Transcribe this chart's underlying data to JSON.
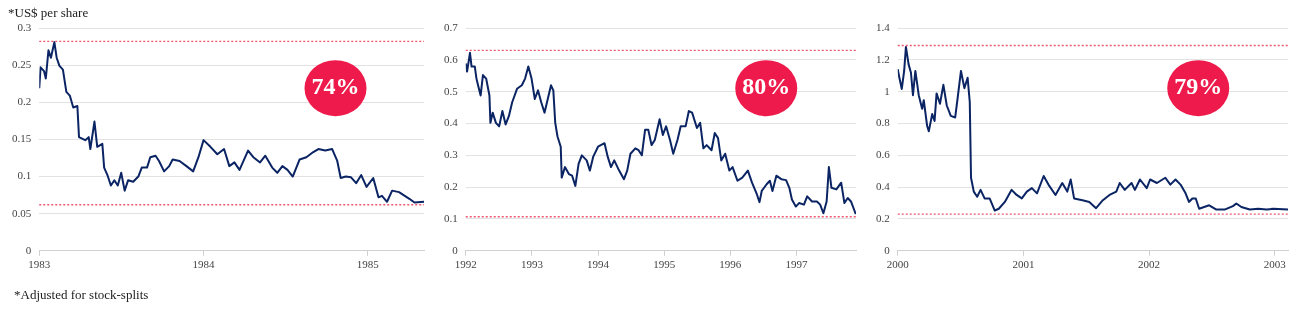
{
  "chart_data": [
    {
      "type": "line",
      "ylabel": "*US$ per share",
      "annotations": [
        "74%",
        "*Adjusted for stock-splits"
      ],
      "xlim": [
        1983,
        1985.342
      ],
      "xticks": [
        1983,
        1984,
        1985
      ],
      "ylim": [
        0,
        0.3
      ],
      "yticks": [
        0,
        0.05,
        0.1,
        0.15,
        0.2,
        0.25,
        0.3
      ],
      "grid": "y",
      "legend": false,
      "marker": "none",
      "line_style": "solid",
      "ref_lines": [
        {
          "axis": "y",
          "value": 0.282,
          "color": "#f0566e",
          "line_style": "dotted"
        },
        {
          "axis": "y",
          "value": 0.062,
          "color": "#f0566e",
          "line_style": "dotted"
        }
      ],
      "series": [
        {
          "color": "#0b2463",
          "x": [
            1983.0,
            1983.008,
            1983.029,
            1983.04,
            1983.056,
            1983.071,
            1983.092,
            1983.106,
            1983.123,
            1983.144,
            1983.165,
            1983.186,
            1983.207,
            1983.232,
            1983.242,
            1983.28,
            1983.301,
            1983.311,
            1983.336,
            1983.353,
            1983.384,
            1983.395,
            1983.415,
            1983.436,
            1983.457,
            1983.478,
            1983.499,
            1983.52,
            1983.541,
            1983.572,
            1983.603,
            1983.624,
            1983.656,
            1983.676,
            1983.708,
            1983.729,
            1983.76,
            1983.791,
            1983.812,
            1983.854,
            1983.896,
            1983.937,
            1983.969,
            1984.0,
            1984.042,
            1984.084,
            1984.125,
            1984.157,
            1984.188,
            1984.219,
            1984.271,
            1984.303,
            1984.344,
            1984.376,
            1984.418,
            1984.449,
            1984.48,
            1984.511,
            1984.543,
            1984.585,
            1984.626,
            1984.668,
            1984.699,
            1984.741,
            1984.783,
            1984.814,
            1984.835,
            1984.866,
            1984.898,
            1984.929,
            1984.96,
            1984.992,
            1985.033,
            1985.065,
            1985.086,
            1985.117,
            1985.148,
            1985.19,
            1985.253,
            1985.284,
            1985.342
          ],
          "values": [
            0.219,
            0.247,
            0.242,
            0.232,
            0.27,
            0.26,
            0.281,
            0.26,
            0.249,
            0.244,
            0.214,
            0.209,
            0.193,
            0.195,
            0.153,
            0.149,
            0.153,
            0.137,
            0.174,
            0.14,
            0.144,
            0.112,
            0.102,
            0.088,
            0.095,
            0.088,
            0.105,
            0.081,
            0.095,
            0.093,
            0.1,
            0.112,
            0.112,
            0.126,
            0.128,
            0.121,
            0.107,
            0.114,
            0.123,
            0.121,
            0.114,
            0.107,
            0.126,
            0.149,
            0.14,
            0.13,
            0.137,
            0.114,
            0.119,
            0.109,
            0.135,
            0.126,
            0.119,
            0.128,
            0.112,
            0.105,
            0.114,
            0.109,
            0.1,
            0.123,
            0.126,
            0.133,
            0.137,
            0.135,
            0.137,
            0.121,
            0.098,
            0.1,
            0.099,
            0.091,
            0.102,
            0.086,
            0.098,
            0.072,
            0.074,
            0.066,
            0.081,
            0.079,
            0.07,
            0.065,
            0.066
          ]
        }
      ]
    },
    {
      "type": "line",
      "annotations": [
        "80%"
      ],
      "xlim": [
        1992,
        1997.9
      ],
      "xticks": [
        1992,
        1993,
        1994,
        1995,
        1996,
        1997
      ],
      "ylim": [
        0,
        0.7
      ],
      "yticks": [
        0,
        0.1,
        0.2,
        0.3,
        0.4,
        0.5,
        0.6,
        0.7
      ],
      "grid": "y",
      "legend": false,
      "marker": "none",
      "line_style": "solid",
      "ref_lines": [
        {
          "axis": "y",
          "value": 0.63,
          "color": "#f0566e",
          "line_style": "dotted"
        },
        {
          "axis": "y",
          "value": 0.107,
          "color": "#f0566e",
          "line_style": "dotted"
        }
      ],
      "series": [
        {
          "color": "#0b2463",
          "x": [
            1992.0,
            1992.02,
            1992.064,
            1992.088,
            1992.137,
            1992.162,
            1992.186,
            1992.225,
            1992.26,
            1992.309,
            1992.358,
            1992.373,
            1992.407,
            1992.456,
            1992.505,
            1992.554,
            1992.603,
            1992.652,
            1992.701,
            1992.775,
            1992.848,
            1992.897,
            1992.946,
            1992.995,
            1993.044,
            1993.093,
            1993.142,
            1993.191,
            1993.24,
            1993.289,
            1993.324,
            1993.353,
            1993.387,
            1993.436,
            1993.451,
            1993.5,
            1993.559,
            1993.608,
            1993.657,
            1993.706,
            1993.755,
            1993.828,
            1993.877,
            1993.926,
            1994.0,
            1994.098,
            1994.147,
            1994.196,
            1994.245,
            1994.319,
            1994.392,
            1994.441,
            1994.49,
            1994.564,
            1994.613,
            1994.662,
            1994.711,
            1994.76,
            1994.809,
            1994.858,
            1994.931,
            1994.98,
            1995.029,
            1995.088,
            1995.137,
            1995.201,
            1995.25,
            1995.324,
            1995.373,
            1995.422,
            1995.495,
            1995.544,
            1995.593,
            1995.642,
            1995.716,
            1995.765,
            1995.814,
            1995.863,
            1995.922,
            1995.985,
            1996.034,
            1996.108,
            1996.181,
            1996.265,
            1996.328,
            1996.402,
            1996.441,
            1996.475,
            1996.549,
            1996.598,
            1996.637,
            1996.696,
            1996.77,
            1996.843,
            1996.892,
            1996.931,
            1996.99,
            1997.039,
            1997.113,
            1997.162,
            1997.235,
            1997.309,
            1997.358,
            1997.407,
            1997.456,
            1997.49,
            1997.529,
            1997.603,
            1997.676,
            1997.725,
            1997.775,
            1997.824,
            1997.897
          ],
          "values": [
            0.589,
            0.563,
            0.622,
            0.579,
            0.579,
            0.541,
            0.52,
            0.488,
            0.552,
            0.541,
            0.488,
            0.402,
            0.434,
            0.402,
            0.391,
            0.439,
            0.397,
            0.423,
            0.466,
            0.509,
            0.52,
            0.541,
            0.579,
            0.541,
            0.477,
            0.504,
            0.466,
            0.434,
            0.477,
            0.52,
            0.504,
            0.402,
            0.359,
            0.327,
            0.23,
            0.263,
            0.241,
            0.236,
            0.204,
            0.273,
            0.3,
            0.284,
            0.252,
            0.295,
            0.327,
            0.338,
            0.295,
            0.263,
            0.284,
            0.252,
            0.225,
            0.252,
            0.305,
            0.322,
            0.316,
            0.3,
            0.38,
            0.38,
            0.332,
            0.348,
            0.413,
            0.364,
            0.391,
            0.348,
            0.305,
            0.348,
            0.391,
            0.391,
            0.439,
            0.434,
            0.386,
            0.402,
            0.322,
            0.332,
            0.316,
            0.37,
            0.354,
            0.284,
            0.305,
            0.252,
            0.263,
            0.22,
            0.23,
            0.252,
            0.214,
            0.177,
            0.153,
            0.188,
            0.209,
            0.22,
            0.188,
            0.236,
            0.225,
            0.222,
            0.198,
            0.161,
            0.139,
            0.15,
            0.145,
            0.171,
            0.155,
            0.155,
            0.145,
            0.118,
            0.155,
            0.263,
            0.198,
            0.193,
            0.214,
            0.15,
            0.166,
            0.155,
            0.115
          ]
        }
      ]
    },
    {
      "type": "line",
      "annotations": [
        "79%"
      ],
      "xlim": [
        2000,
        2003.105
      ],
      "xticks": [
        2000,
        2001,
        2002,
        2003
      ],
      "ylim": [
        0,
        1.4
      ],
      "yticks": [
        0,
        0.2,
        0.4,
        0.6,
        0.8,
        1,
        1.2,
        1.4
      ],
      "grid": "y",
      "legend": false,
      "marker": "none",
      "line_style": "solid",
      "ref_lines": [
        {
          "axis": "y",
          "value": 1.29,
          "color": "#f0566e",
          "line_style": "dotted"
        },
        {
          "axis": "y",
          "value": 0.23,
          "color": "#f0566e",
          "line_style": "dotted"
        }
      ],
      "series": [
        {
          "color": "#0b2463",
          "x": [
            2000.0,
            2000.013,
            2000.032,
            2000.051,
            2000.065,
            2000.086,
            2000.105,
            2000.121,
            2000.14,
            2000.167,
            2000.194,
            2000.207,
            2000.234,
            2000.247,
            2000.274,
            2000.293,
            2000.309,
            2000.336,
            2000.363,
            2000.39,
            2000.422,
            2000.457,
            2000.476,
            2000.503,
            2000.53,
            2000.556,
            2000.573,
            2000.583,
            2000.605,
            2000.632,
            2000.659,
            2000.691,
            2000.731,
            2000.772,
            2000.804,
            2000.852,
            2000.906,
            2000.946,
            2000.987,
            2001.027,
            2001.067,
            2001.108,
            2001.161,
            2001.199,
            2001.255,
            2001.309,
            2001.349,
            2001.376,
            2001.403,
            2001.47,
            2001.524,
            2001.578,
            2001.632,
            2001.685,
            2001.739,
            2001.766,
            2001.806,
            2001.86,
            2001.887,
            2001.927,
            2001.981,
            2002.008,
            2002.062,
            2002.129,
            2002.169,
            2002.21,
            2002.25,
            2002.29,
            2002.317,
            2002.344,
            2002.371,
            2002.398,
            2002.438,
            2002.478,
            2002.532,
            2002.605,
            2002.667,
            2002.694,
            2002.734,
            2002.801,
            2002.868,
            2002.935,
            2002.989,
            2003.105
          ],
          "values": [
            1.141,
            1.087,
            1.017,
            1.13,
            1.281,
            1.173,
            1.119,
            0.978,
            1.13,
            0.978,
            0.892,
            0.946,
            0.784,
            0.751,
            0.859,
            0.816,
            0.989,
            0.924,
            1.043,
            0.913,
            0.848,
            0.838,
            0.957,
            1.13,
            1.022,
            1.087,
            0.935,
            0.459,
            0.372,
            0.34,
            0.383,
            0.329,
            0.329,
            0.253,
            0.264,
            0.307,
            0.383,
            0.351,
            0.329,
            0.372,
            0.394,
            0.361,
            0.47,
            0.416,
            0.351,
            0.426,
            0.372,
            0.448,
            0.329,
            0.318,
            0.307,
            0.268,
            0.318,
            0.351,
            0.372,
            0.426,
            0.383,
            0.426,
            0.383,
            0.448,
            0.394,
            0.448,
            0.426,
            0.459,
            0.416,
            0.448,
            0.416,
            0.361,
            0.307,
            0.329,
            0.329,
            0.264,
            0.275,
            0.286,
            0.26,
            0.26,
            0.281,
            0.297,
            0.275,
            0.26,
            0.264,
            0.26,
            0.264,
            0.26
          ]
        }
      ]
    }
  ]
}
